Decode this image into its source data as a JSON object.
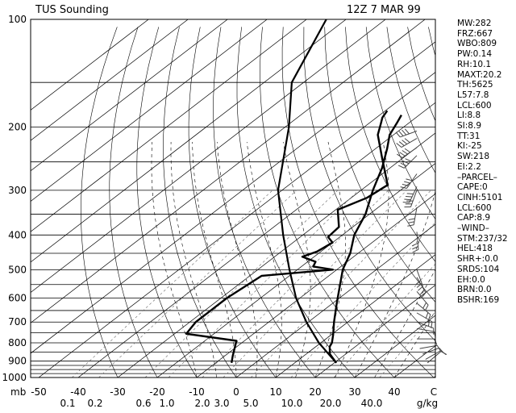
{
  "title": "TUS Sounding",
  "datetime": "12Z  7 MAR 99",
  "indices": [
    "MW:282",
    "FRZ:667",
    "WBO:809",
    "PW:0.14",
    "RH:10.1",
    "MAXT:20.2",
    "TH:5625",
    "L57:7.8",
    "LCL:600",
    "LI:8.8",
    "SI:8.9",
    "TT:31",
    "KI:-25",
    "SW:218",
    "EI:2.2",
    "–PARCEL–",
    "CAPE:0",
    "CINH:5101",
    "LCL:600",
    "CAP:8.9",
    "–WIND–",
    "STM:237/32",
    "HEL:418",
    "SHR+:0.0",
    "SRDS:104",
    "EH:0.0",
    "BRN:0.0",
    "BSHR:169"
  ],
  "chart_data": {
    "type": "line",
    "title": "TUS Sounding",
    "subtitle": "12Z  7 MAR 99",
    "xlabel": "",
    "ylabel": "mb",
    "pressure_labels": [
      "100",
      "200",
      "300",
      "400",
      "500",
      "600",
      "700",
      "800",
      "900",
      "1000"
    ],
    "pressure_levels": [
      100,
      200,
      300,
      400,
      500,
      600,
      700,
      800,
      900,
      1000
    ],
    "temp_tick_labels": [
      "-50",
      "-40",
      "-30",
      "-20",
      "-10",
      "0",
      "10",
      "20",
      "30",
      "40",
      "C"
    ],
    "temp_ticks": [
      -50,
      -40,
      -30,
      -20,
      -10,
      0,
      10,
      20,
      30,
      40
    ],
    "mixing_ratio_labels": [
      "0.1",
      "0.2",
      "0.6",
      "1.0",
      "2.0",
      "3.0",
      "5.0",
      "10.0",
      "20.0",
      "40.0",
      "g/kg"
    ],
    "mixing_ratios": [
      0.1,
      0.2,
      0.6,
      1.0,
      2.0,
      3.0,
      5.0,
      10.0,
      20.0,
      40.0
    ],
    "xlim": [
      -50,
      50
    ],
    "ylim": [
      1000,
      100
    ],
    "log_y": true,
    "skew": true,
    "series": [
      {
        "values": [
          [
            910,
            20.5
          ],
          [
            860,
            16.0
          ],
          [
            820,
            13.5
          ],
          [
            800,
            12.8
          ],
          [
            760,
            10.5
          ],
          [
            700,
            6.5
          ],
          [
            620,
            1.0
          ],
          [
            500,
            -8.5
          ],
          [
            450,
            -12.0
          ],
          [
            400,
            -17.0
          ],
          [
            350,
            -21.0
          ],
          [
            300,
            -27.0
          ],
          [
            260,
            -32.0
          ],
          [
            230,
            -37.0
          ],
          [
            210,
            -41.0
          ],
          [
            195,
            -43.0
          ],
          [
            185,
            -44.5
          ]
        ]
      },
      {
        "values": [
          [
            910,
            -6.0
          ],
          [
            870,
            -8.0
          ],
          [
            790,
            -12.0
          ],
          [
            755,
            -27.0
          ],
          [
            700,
            -28.5
          ],
          [
            600,
            -28.5
          ],
          [
            520,
            -27.0
          ],
          [
            500,
            -11.0
          ],
          [
            490,
            -17.0
          ],
          [
            475,
            -18.0
          ],
          [
            460,
            -23.0
          ],
          [
            445,
            -21.0
          ],
          [
            420,
            -20.0
          ],
          [
            405,
            -23.0
          ],
          [
            380,
            -23.5
          ],
          [
            340,
            -29.5
          ],
          [
            315,
            -26.0
          ],
          [
            290,
            -25.0
          ],
          [
            245,
            -35.0
          ],
          [
            210,
            -44.0
          ],
          [
            195,
            -47.0
          ],
          [
            188,
            -48.5
          ],
          [
            180,
            -49.5
          ]
        ]
      },
      {
        "values": [
          [
            910,
            20.5
          ],
          [
            800,
            9.5
          ],
          [
            700,
            -0.5
          ],
          [
            600,
            -11.0
          ],
          [
            500,
            -22.0
          ],
          [
            400,
            -35.0
          ],
          [
            300,
            -51.0
          ],
          [
            200,
            -69.0
          ],
          [
            150,
            -83.0
          ],
          [
            100,
            -95.0
          ]
        ]
      }
    ],
    "grid": true,
    "legend": "none"
  }
}
